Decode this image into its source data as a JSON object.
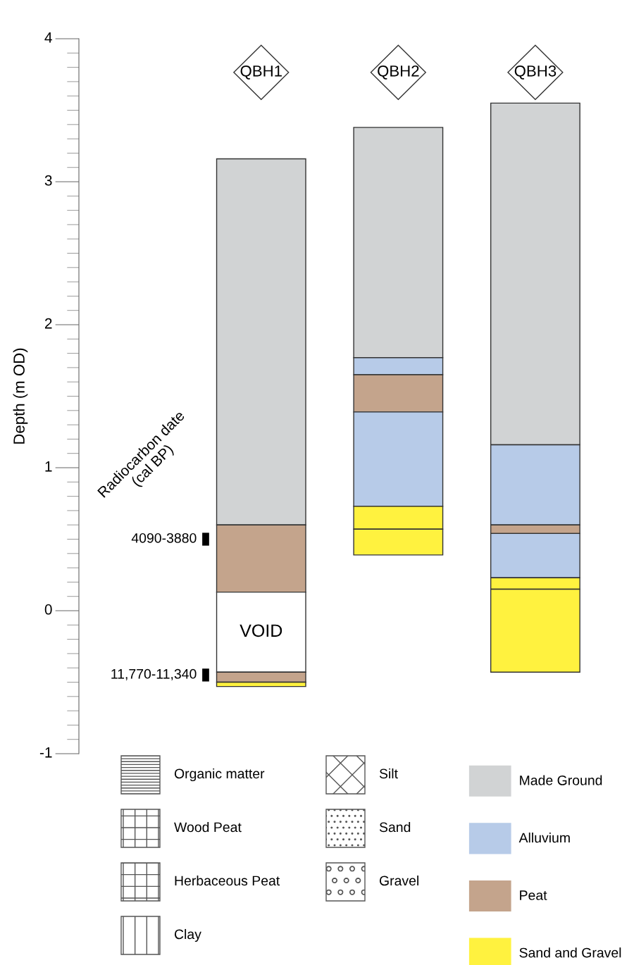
{
  "chart_data": {
    "type": "bar",
    "ylabel": "Depth (m OD)",
    "categories": [
      "QBH1",
      "QBH2",
      "QBH3"
    ],
    "series": [
      {
        "name": "Made Ground",
        "color": "#d1d3d4",
        "base": [
          0.6,
          1.77,
          1.16
        ],
        "values": [
          2.56,
          1.61,
          2.39
        ]
      },
      {
        "name": "Alluvium",
        "color": "#b7cbe8",
        "base": [
          null,
          1.65,
          0.6
        ],
        "values": [
          null,
          0.12,
          0.56
        ]
      },
      {
        "name": "Peat",
        "color": "#c4a48c",
        "base": [
          0.13,
          1.39,
          0.54
        ],
        "values": [
          0.47,
          0.26,
          0.06
        ]
      },
      {
        "color": "#b7cbe8",
        "base": [
          null,
          0.73,
          0.23
        ],
        "values": [
          null,
          0.66,
          0.31
        ]
      },
      {
        "color": "#ffffff",
        "base": [
          -0.43,
          null,
          null
        ],
        "values": [
          0.56,
          null,
          null
        ]
      },
      {
        "color": "#c4a48c",
        "base": [
          -0.5,
          null,
          null
        ],
        "values": [
          0.07,
          null,
          null
        ]
      },
      {
        "name": "Sand and Gravel",
        "color": "#fff23f",
        "base": [
          -0.53,
          0.57,
          0.15
        ],
        "values": [
          0.03,
          0.16,
          0.08
        ]
      },
      {
        "color": "#fff23f",
        "base": [
          null,
          0.39,
          -0.43
        ],
        "values": [
          null,
          0.18,
          0.58
        ]
      }
    ],
    "ylim": [
      -1,
      4
    ],
    "yticks": [
      {
        "value": -1,
        "label": "-1"
      },
      0,
      1,
      2,
      3,
      4
    ],
    "tick_labels": "y",
    "grid": false,
    "legend": "bottom right",
    "annotations": [
      "Radiocarbon date\n(cal BP)",
      "4090-3880",
      "11,770-11,340",
      "VOID",
      "Organic matter",
      "Wood Peat",
      "Herbaceous Peat",
      "Clay",
      "Silt",
      "Sand",
      "Gravel"
    ]
  }
}
